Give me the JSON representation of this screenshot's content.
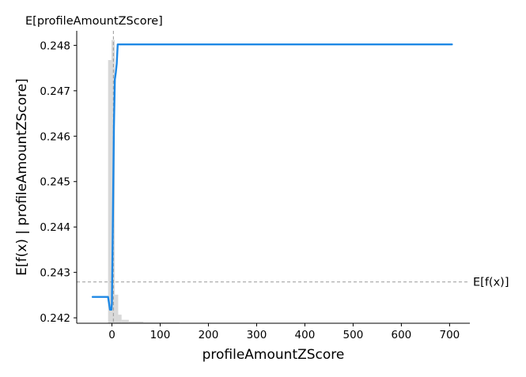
{
  "chart_data": {
    "type": "line",
    "xlabel": "profileAmountZScore",
    "ylabel": "E[f(x) | profileAmountZScore]",
    "xlim": [
      -73,
      742
    ],
    "ylim": [
      0.24188,
      0.24832
    ],
    "x_ticks": [
      0,
      100,
      200,
      300,
      400,
      500,
      600,
      700
    ],
    "y_ticks": [
      0.242,
      0.243,
      0.244,
      0.245,
      0.246,
      0.247,
      0.248
    ],
    "y_tick_labels": [
      "0.242",
      "0.243",
      "0.244",
      "0.245",
      "0.246",
      "0.247",
      "0.248"
    ],
    "series": [
      {
        "color": "#1E88E5",
        "x": [
          -40,
          -30,
          -20,
          -10,
          -8,
          -4,
          -1,
          0,
          2,
          4,
          6,
          8,
          10,
          12,
          14,
          705
        ],
        "y": [
          0.24246,
          0.24246,
          0.24246,
          0.24246,
          0.24246,
          0.24218,
          0.24218,
          0.24232,
          0.2441,
          0.2462,
          0.24725,
          0.2474,
          0.2476,
          0.24802,
          0.24802,
          0.24802
        ]
      }
    ],
    "expected_value_line": {
      "y": 0.24279,
      "label": "E[f(x)]",
      "color": "#999999"
    },
    "expected_feature_line": {
      "x": 3,
      "label": "E[profileAmountZScore]",
      "color": "#999999"
    },
    "histogram": {
      "color": "#cccccc",
      "bins": [
        {
          "x0": -8,
          "x1": -1,
          "h": 0.92
        },
        {
          "x0": -1,
          "x1": 6,
          "h": 0.99
        },
        {
          "x0": 6,
          "x1": 13,
          "h": 0.1
        },
        {
          "x0": 13,
          "x1": 20,
          "h": 0.03
        },
        {
          "x0": 20,
          "x1": 35,
          "h": 0.012
        },
        {
          "x0": 35,
          "x1": 65,
          "h": 0.006
        },
        {
          "x0": 65,
          "x1": 140,
          "h": 0.003
        }
      ]
    }
  }
}
